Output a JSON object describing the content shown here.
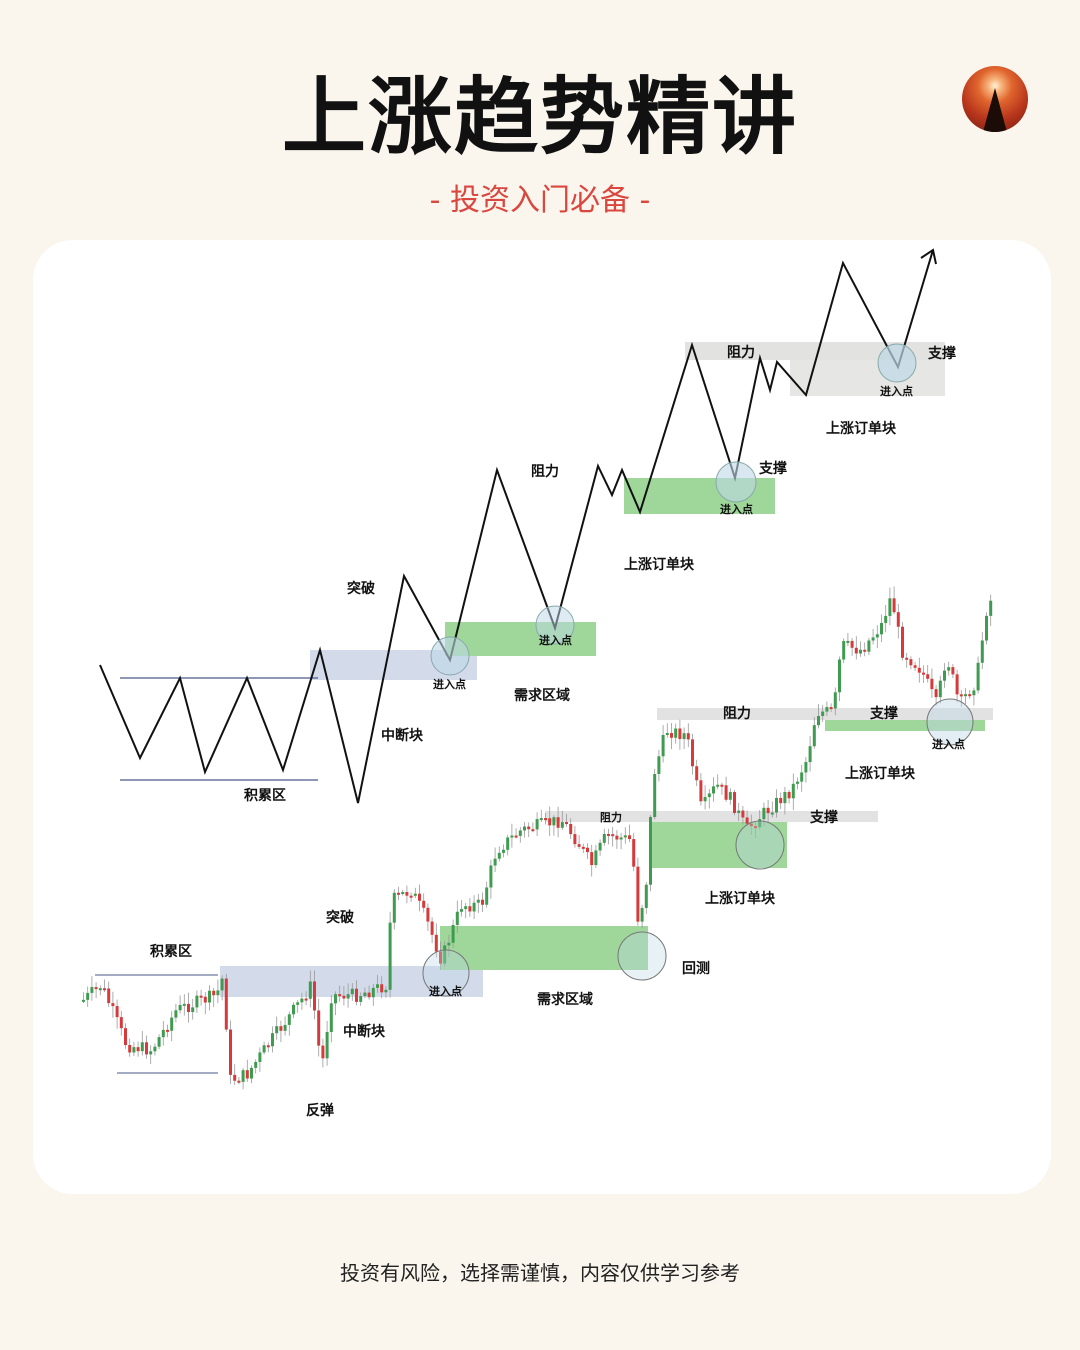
{
  "header": {
    "title": "上涨趋势精讲",
    "subtitle": "- 投资入门必备 -",
    "logo_icon": "sunset-peak-logo"
  },
  "schematic": {
    "accumulation": "积累区",
    "breakout": "突破",
    "interruption_block": "中断块",
    "entry_1": "进入点",
    "resistance_1": "阻力",
    "demand_zone": "需求区域",
    "bullish_order_block_1": "上涨订单块",
    "support_1": "支撑",
    "entry_2": "进入点",
    "resistance_2": "阻力",
    "support_2": "支撑",
    "entry_3": "进入点",
    "bullish_order_block_2": "上涨订单块"
  },
  "candles": {
    "accumulation": "积累区",
    "breakout": "突破",
    "interruption_block": "中断块",
    "rebound": "反弹",
    "entry_1": "进入点",
    "demand_zone": "需求区域",
    "retest": "回测",
    "resistance_1": "阻力",
    "support_1": "支撑",
    "bullish_order_block_1": "上涨订单块",
    "resistance_2": "阻力",
    "support_2": "支撑",
    "entry_2": "进入点",
    "bullish_order_block_2": "上涨订单块"
  },
  "colors": {
    "bull": "#3e9b4f",
    "bear": "#d63a3a",
    "demand": "#8fd18f",
    "interrupt": "#c9d4ea",
    "level": "#dcdcdc",
    "accent": "#d9473f"
  },
  "footer": {
    "disclaimer": "投资有风险，选择需谨慎，内容仅供学习参考"
  }
}
